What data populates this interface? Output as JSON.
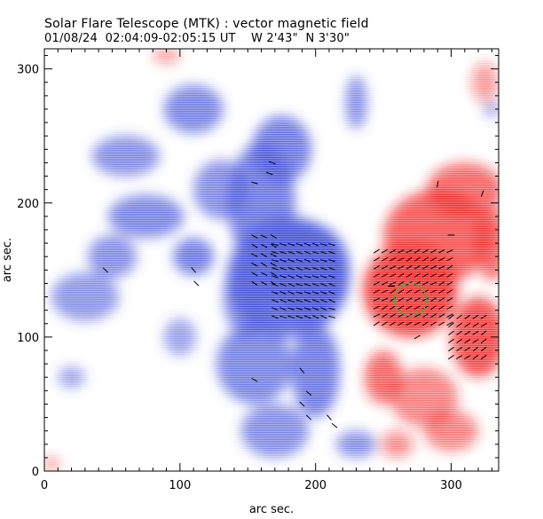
{
  "title": "Solar Flare Telescope (MTK) : vector magnetic field",
  "subtitle": "01/08/24  02:04:09-02:05:15 UT    W 2'43\"  N 3'30\"",
  "axes": {
    "xlabel": "arc sec.",
    "ylabel": "arc sec.",
    "xlim": [
      0,
      335
    ],
    "ylim": [
      0,
      315
    ],
    "xticks": [
      "0",
      "100",
      "200",
      "300"
    ],
    "yticks": [
      "0",
      "100",
      "200",
      "300"
    ]
  },
  "colors": {
    "negative_polarity": "#3c4ad6",
    "positive_polarity": "#f01a1a",
    "vectors": "#000000",
    "flare_marker": "#3cb43c"
  },
  "chart_data": {
    "type": "heatmap",
    "description_units": "arc sec",
    "negative_regions": [
      {
        "x": 180,
        "y": 145,
        "rx": 45,
        "ry": 45,
        "v": 1.0
      },
      {
        "x": 195,
        "y": 150,
        "rx": 30,
        "ry": 35,
        "v": 1.0
      },
      {
        "x": 160,
        "y": 200,
        "rx": 25,
        "ry": 45,
        "v": 0.8
      },
      {
        "x": 175,
        "y": 240,
        "rx": 22,
        "ry": 25,
        "v": 0.8
      },
      {
        "x": 110,
        "y": 270,
        "rx": 22,
        "ry": 18,
        "v": 0.7
      },
      {
        "x": 130,
        "y": 210,
        "rx": 20,
        "ry": 22,
        "v": 0.6
      },
      {
        "x": 110,
        "y": 160,
        "rx": 15,
        "ry": 14,
        "v": 0.8
      },
      {
        "x": 75,
        "y": 190,
        "rx": 28,
        "ry": 16,
        "v": 0.7
      },
      {
        "x": 60,
        "y": 235,
        "rx": 25,
        "ry": 15,
        "v": 0.6
      },
      {
        "x": 50,
        "y": 160,
        "rx": 18,
        "ry": 16,
        "v": 0.6
      },
      {
        "x": 30,
        "y": 130,
        "rx": 25,
        "ry": 18,
        "v": 0.5
      },
      {
        "x": 150,
        "y": 130,
        "rx": 18,
        "ry": 30,
        "v": 0.7
      },
      {
        "x": 155,
        "y": 80,
        "rx": 28,
        "ry": 30,
        "v": 0.7
      },
      {
        "x": 200,
        "y": 75,
        "rx": 18,
        "ry": 35,
        "v": 0.8
      },
      {
        "x": 170,
        "y": 30,
        "rx": 25,
        "ry": 20,
        "v": 0.6
      },
      {
        "x": 230,
        "y": 20,
        "rx": 15,
        "ry": 10,
        "v": 0.6
      },
      {
        "x": 230,
        "y": 275,
        "rx": 8,
        "ry": 20,
        "v": 0.6
      },
      {
        "x": 100,
        "y": 100,
        "rx": 12,
        "ry": 14,
        "v": 0.4
      },
      {
        "x": 20,
        "y": 70,
        "rx": 10,
        "ry": 8,
        "v": 0.4
      },
      {
        "x": 330,
        "y": 270,
        "rx": 6,
        "ry": 6,
        "v": 0.4
      }
    ],
    "positive_regions": [
      {
        "x": 270,
        "y": 135,
        "rx": 35,
        "ry": 35,
        "v": 1.0
      },
      {
        "x": 290,
        "y": 175,
        "rx": 40,
        "ry": 35,
        "v": 0.8
      },
      {
        "x": 320,
        "y": 100,
        "rx": 20,
        "ry": 30,
        "v": 0.9
      },
      {
        "x": 310,
        "y": 210,
        "rx": 28,
        "ry": 20,
        "v": 0.7
      },
      {
        "x": 330,
        "y": 170,
        "rx": 12,
        "ry": 28,
        "v": 0.7
      },
      {
        "x": 250,
        "y": 70,
        "rx": 14,
        "ry": 20,
        "v": 0.7
      },
      {
        "x": 280,
        "y": 55,
        "rx": 25,
        "ry": 22,
        "v": 0.5
      },
      {
        "x": 300,
        "y": 30,
        "rx": 20,
        "ry": 15,
        "v": 0.5
      },
      {
        "x": 260,
        "y": 20,
        "rx": 12,
        "ry": 10,
        "v": 0.4
      },
      {
        "x": 325,
        "y": 290,
        "rx": 10,
        "ry": 15,
        "v": 0.3
      },
      {
        "x": 90,
        "y": 310,
        "rx": 10,
        "ry": 6,
        "v": 0.3
      },
      {
        "x": 5,
        "y": 5,
        "rx": 6,
        "ry": 5,
        "v": 0.4
      }
    ],
    "vector_groups": [
      {
        "xr": [
          170,
          215
        ],
        "yr": [
          115,
          170
        ],
        "step": 6,
        "angle": -20,
        "len": 5
      },
      {
        "xr": [
          245,
          300
        ],
        "yr": [
          110,
          165
        ],
        "step": 6,
        "angle": 30,
        "len": 5
      },
      {
        "xr": [
          300,
          325
        ],
        "yr": [
          85,
          115
        ],
        "step": 6,
        "angle": 35,
        "len": 5
      },
      {
        "xr": [
          155,
          175
        ],
        "yr": [
          140,
          175
        ],
        "step": 7,
        "angle": -30,
        "len": 5
      }
    ],
    "vectors_single": [
      [
        168,
        230,
        -20
      ],
      [
        166,
        222,
        -20
      ],
      [
        155,
        215,
        -15
      ],
      [
        110,
        150,
        -50
      ],
      [
        112,
        140,
        -45
      ],
      [
        45,
        150,
        -45
      ],
      [
        190,
        75,
        -50
      ],
      [
        195,
        58,
        -40
      ],
      [
        190,
        50,
        -45
      ],
      [
        210,
        40,
        -50
      ],
      [
        214,
        34,
        -40
      ],
      [
        290,
        214,
        80
      ],
      [
        323,
        207,
        70
      ],
      [
        300,
        176,
        0
      ],
      [
        256,
        138,
        0
      ],
      [
        275,
        100,
        30
      ],
      [
        155,
        68,
        -30
      ],
      [
        195,
        40,
        -45
      ]
    ],
    "flare_circle": {
      "x": 270,
      "y": 128,
      "r": 12
    }
  }
}
